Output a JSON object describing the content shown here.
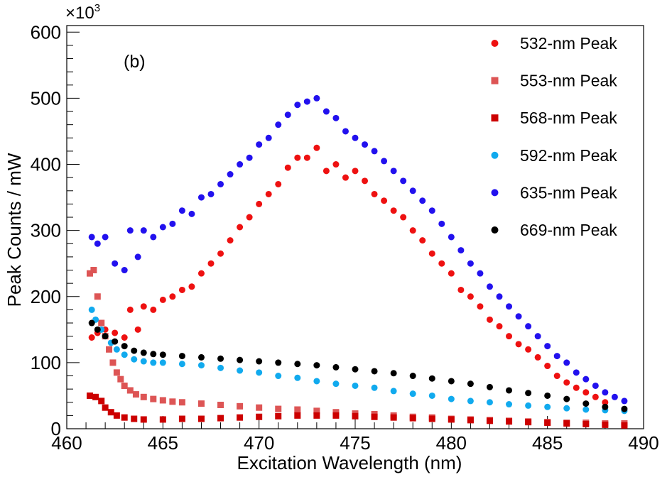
{
  "chart_data": {
    "type": "scatter",
    "panel_label": "(b)",
    "xlabel": "Excitation Wavelength (nm)",
    "ylabel": "Peak Counts / mW",
    "y_multiplier": "×10",
    "y_multiplier_exp": "3",
    "xlim": [
      460,
      490
    ],
    "ylim": [
      0,
      610
    ],
    "x_ticks": [
      460,
      465,
      470,
      475,
      480,
      485,
      490
    ],
    "y_ticks": [
      0,
      100,
      200,
      300,
      400,
      500,
      600
    ],
    "grid": false,
    "legend_position": "top-right",
    "series": [
      {
        "name": "532-nm Peak",
        "color": "#ee1111",
        "marker": "circle",
        "x": [
          461.3,
          461.6,
          462.0,
          462.5,
          463.0,
          463.3,
          463.7,
          464.0,
          464.5,
          465.0,
          465.5,
          466.0,
          466.5,
          467.0,
          467.5,
          468.0,
          468.5,
          469.0,
          469.5,
          470.0,
          470.5,
          471.0,
          471.5,
          472.0,
          472.5,
          473.0,
          473.5,
          474.0,
          474.5,
          475.0,
          475.5,
          476.0,
          476.5,
          477.0,
          477.5,
          478.0,
          478.5,
          479.0,
          479.5,
          480.0,
          480.5,
          481.0,
          481.5,
          482.0,
          482.5,
          483.0,
          483.5,
          484.0,
          484.5,
          485.0,
          485.5,
          486.0,
          486.5,
          487.0,
          487.5,
          488.0
        ],
        "y": [
          138,
          145,
          150,
          145,
          138,
          180,
          150,
          185,
          180,
          195,
          200,
          210,
          215,
          235,
          250,
          265,
          285,
          305,
          320,
          340,
          355,
          370,
          395,
          410,
          410,
          425,
          390,
          400,
          380,
          390,
          375,
          355,
          345,
          330,
          320,
          300,
          285,
          265,
          250,
          235,
          210,
          200,
          185,
          165,
          155,
          140,
          128,
          120,
          108,
          95,
          80,
          70,
          62,
          55,
          48,
          40
        ]
      },
      {
        "name": "553-nm Peak",
        "color": "#dd5555",
        "marker": "square",
        "x": [
          461.2,
          461.4,
          461.6,
          461.8,
          462.0,
          462.2,
          462.4,
          462.6,
          462.8,
          463.0,
          463.3,
          463.6,
          464.0,
          464.5,
          465.0,
          465.5,
          466.0,
          467.0,
          468.0,
          469.0,
          470.0,
          471.0,
          472.0,
          473.0,
          474.0,
          475.0,
          476.0,
          477.0,
          478.0,
          479.0,
          480.0,
          481.0,
          482.0,
          483.0,
          484.0,
          485.0,
          486.0,
          487.0,
          488.0,
          489.0
        ],
        "y": [
          235,
          240,
          200,
          160,
          140,
          120,
          100,
          85,
          75,
          65,
          58,
          52,
          48,
          45,
          43,
          41,
          40,
          38,
          36,
          34,
          32,
          30,
          29,
          27,
          25,
          23,
          22,
          20,
          18,
          17,
          15,
          14,
          13,
          12,
          11,
          10,
          9,
          9,
          8,
          8
        ]
      },
      {
        "name": "568-nm Peak",
        "color": "#cc0000",
        "marker": "square",
        "x": [
          461.2,
          461.5,
          461.8,
          462.0,
          462.3,
          462.6,
          463.0,
          463.5,
          464.0,
          465.0,
          466.0,
          467.0,
          468.0,
          469.0,
          470.0,
          471.0,
          472.0,
          473.0,
          474.0,
          475.0,
          476.0,
          477.0,
          478.0,
          479.0,
          480.0,
          481.0,
          482.0,
          483.0,
          484.0,
          485.0,
          486.0,
          487.0,
          488.0,
          489.0
        ],
        "y": [
          50,
          48,
          42,
          32,
          25,
          20,
          17,
          15,
          14,
          14,
          15,
          15,
          16,
          17,
          18,
          19,
          20,
          20,
          20,
          19,
          18,
          17,
          16,
          15,
          14,
          13,
          12,
          11,
          10,
          9,
          8,
          7,
          6,
          5
        ]
      },
      {
        "name": "592-nm Peak",
        "color": "#11aaee",
        "marker": "circle",
        "x": [
          461.3,
          461.5,
          461.8,
          462.0,
          462.3,
          462.6,
          463.0,
          463.5,
          464.0,
          464.5,
          465.0,
          466.0,
          467.0,
          468.0,
          469.0,
          470.0,
          471.0,
          472.0,
          473.0,
          474.0,
          475.0,
          476.0,
          477.0,
          478.0,
          479.0,
          480.0,
          481.0,
          482.0,
          483.0,
          484.0,
          485.0,
          486.0,
          487.0,
          488.0,
          489.0
        ],
        "y": [
          180,
          165,
          150,
          140,
          130,
          120,
          112,
          105,
          102,
          100,
          100,
          98,
          96,
          92,
          88,
          85,
          80,
          77,
          72,
          68,
          65,
          62,
          57,
          53,
          50,
          45,
          42,
          40,
          37,
          35,
          33,
          31,
          29,
          28,
          27
        ]
      },
      {
        "name": "635-nm Peak",
        "color": "#2211ee",
        "marker": "circle",
        "x": [
          461.3,
          461.6,
          462.0,
          462.5,
          463.0,
          463.3,
          463.7,
          464.0,
          464.5,
          465.0,
          465.5,
          466.0,
          466.5,
          467.0,
          467.5,
          468.0,
          468.5,
          469.0,
          469.5,
          470.0,
          470.5,
          471.0,
          471.5,
          472.0,
          472.5,
          473.0,
          473.5,
          474.0,
          474.5,
          475.0,
          475.5,
          476.0,
          476.5,
          477.0,
          477.5,
          478.0,
          478.5,
          479.0,
          479.5,
          480.0,
          480.5,
          481.0,
          481.5,
          482.0,
          482.5,
          483.0,
          483.5,
          484.0,
          484.5,
          485.0,
          485.5,
          486.0,
          486.5,
          487.0,
          487.5,
          488.0,
          488.5,
          489.0
        ],
        "y": [
          290,
          280,
          290,
          250,
          240,
          300,
          260,
          300,
          290,
          305,
          310,
          330,
          325,
          350,
          355,
          370,
          385,
          400,
          410,
          430,
          440,
          460,
          475,
          490,
          495,
          500,
          480,
          470,
          450,
          440,
          430,
          420,
          405,
          390,
          375,
          360,
          345,
          330,
          310,
          290,
          270,
          250,
          235,
          215,
          200,
          185,
          170,
          155,
          140,
          125,
          110,
          100,
          85,
          75,
          65,
          55,
          48,
          42
        ]
      },
      {
        "name": "669-nm Peak",
        "color": "#000000",
        "marker": "circle",
        "x": [
          461.3,
          461.6,
          462.0,
          462.5,
          463.0,
          463.5,
          464.0,
          464.5,
          465.0,
          466.0,
          467.0,
          468.0,
          469.0,
          470.0,
          471.0,
          472.0,
          473.0,
          474.0,
          475.0,
          476.0,
          477.0,
          478.0,
          479.0,
          480.0,
          481.0,
          482.0,
          483.0,
          484.0,
          485.0,
          486.0,
          487.0,
          488.0,
          489.0
        ],
        "y": [
          160,
          150,
          140,
          132,
          125,
          118,
          115,
          113,
          112,
          110,
          108,
          106,
          104,
          102,
          100,
          98,
          96,
          93,
          90,
          87,
          84,
          80,
          76,
          72,
          68,
          63,
          58,
          54,
          50,
          45,
          38,
          33,
          30
        ]
      }
    ]
  }
}
